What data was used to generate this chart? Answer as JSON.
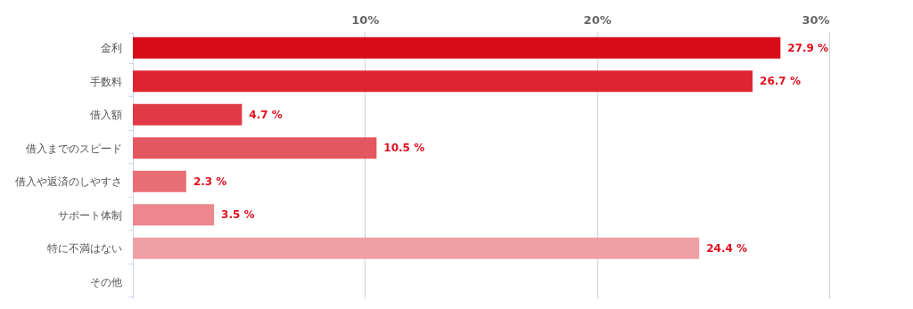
{
  "chart_data": {
    "type": "bar",
    "orientation": "horizontal",
    "categories": [
      "金利",
      "手数料",
      "借入額",
      "借入までのスピード",
      "借入や返済のしやすさ",
      "サポート体制",
      "特に不満はない",
      "その他"
    ],
    "values": [
      27.9,
      26.7,
      4.7,
      10.5,
      2.3,
      3.5,
      24.4,
      null
    ],
    "value_labels": [
      "27.9 %",
      "26.7 %",
      "4.7 %",
      "10.5 %",
      "2.3 %",
      "3.5 %",
      "24.4 %",
      null
    ],
    "colors": [
      "#d80c18",
      "#dd2532",
      "#e03a46",
      "#e45660",
      "#e86e76",
      "#ec878d",
      "#f0a0a5",
      "#f3b5b9"
    ],
    "xlim": [
      0,
      30
    ],
    "xticks": [
      {
        "value": 10,
        "label": "10%"
      },
      {
        "value": 20,
        "label": "20%"
      },
      {
        "value": 30,
        "label": "30%"
      }
    ],
    "grid": "x"
  }
}
